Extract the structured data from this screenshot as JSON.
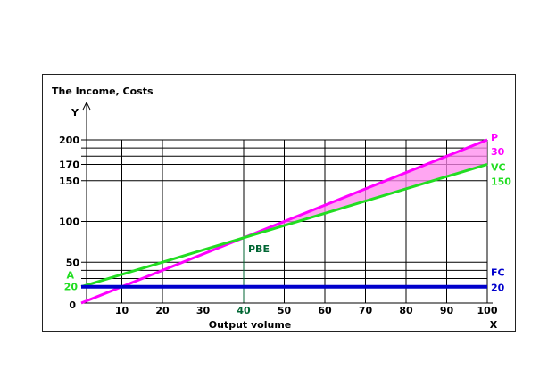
{
  "chart_data": {
    "type": "line",
    "title": "The Income, Costs",
    "xlabel": "Output volume",
    "ylabel": "Y",
    "x_axis_end_label": "X",
    "xlim": [
      0,
      100
    ],
    "ylim": [
      0,
      200
    ],
    "x_ticks": [
      10,
      20,
      30,
      40,
      50,
      60,
      70,
      80,
      90,
      100
    ],
    "x_grid": [
      10,
      20,
      30,
      40,
      50,
      60,
      70,
      80,
      90,
      100
    ],
    "y_ticks": [
      50,
      100,
      150,
      170,
      200
    ],
    "y_grid": [
      30,
      40,
      50,
      100,
      150,
      170,
      180,
      190,
      200
    ],
    "origin_label": "0",
    "grid": true,
    "series": [
      {
        "name": "P",
        "color": "#ff00ff",
        "x": [
          0,
          100
        ],
        "y": [
          0,
          200
        ],
        "end_value_label": "30"
      },
      {
        "name": "VC",
        "color": "#22dd22",
        "x": [
          0,
          100
        ],
        "y": [
          20,
          170
        ],
        "end_value_label": "150",
        "start_label": "A",
        "start_value_label": "20"
      },
      {
        "name": "FC",
        "color": "#0000cc",
        "x": [
          0,
          100
        ],
        "y": [
          20,
          20
        ],
        "end_value_label": "20"
      }
    ],
    "profit_area": {
      "x_from": 40,
      "x_to": 100,
      "color": "#ff88ee"
    },
    "break_even": {
      "label": "PBE",
      "x": 40,
      "y": 80,
      "x_label": "40",
      "color": "#006633"
    }
  }
}
